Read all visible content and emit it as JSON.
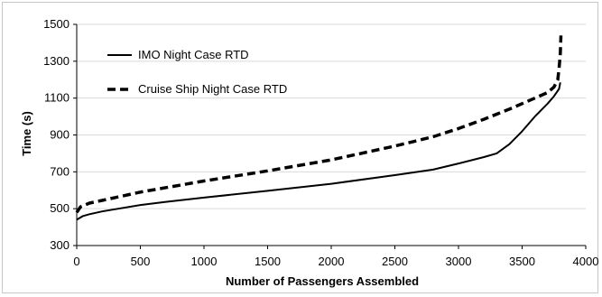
{
  "chart_data": {
    "type": "line",
    "title": "",
    "xlabel": "Number of Passengers Assembled",
    "ylabel": "Time (s)",
    "xlim": [
      0,
      4000
    ],
    "ylim": [
      300,
      1500
    ],
    "x_ticks": [
      0,
      500,
      1000,
      1500,
      2000,
      2500,
      3000,
      3500,
      4000
    ],
    "y_ticks": [
      300,
      500,
      700,
      900,
      1100,
      1300,
      1500
    ],
    "grid": "horizontal",
    "legend_position": "top-left",
    "series": [
      {
        "name": "IMO Night Case RTD",
        "style": "solid",
        "color": "#000000",
        "points": [
          [
            0,
            440
          ],
          [
            50,
            460
          ],
          [
            100,
            470
          ],
          [
            200,
            485
          ],
          [
            300,
            497
          ],
          [
            500,
            520
          ],
          [
            700,
            537
          ],
          [
            1000,
            560
          ],
          [
            1500,
            597
          ],
          [
            2000,
            635
          ],
          [
            2500,
            682
          ],
          [
            2800,
            712
          ],
          [
            3000,
            745
          ],
          [
            3200,
            780
          ],
          [
            3300,
            800
          ],
          [
            3400,
            850
          ],
          [
            3500,
            920
          ],
          [
            3600,
            1000
          ],
          [
            3700,
            1070
          ],
          [
            3750,
            1110
          ],
          [
            3790,
            1150
          ],
          [
            3800,
            1185
          ]
        ]
      },
      {
        "name": "Cruise Ship Night Case RTD",
        "style": "dashed",
        "color": "#000000",
        "points": [
          [
            0,
            480
          ],
          [
            30,
            510
          ],
          [
            100,
            530
          ],
          [
            200,
            545
          ],
          [
            500,
            590
          ],
          [
            1000,
            650
          ],
          [
            1500,
            705
          ],
          [
            2000,
            765
          ],
          [
            2500,
            840
          ],
          [
            2800,
            890
          ],
          [
            3000,
            935
          ],
          [
            3200,
            985
          ],
          [
            3400,
            1040
          ],
          [
            3600,
            1100
          ],
          [
            3700,
            1130
          ],
          [
            3750,
            1160
          ],
          [
            3780,
            1200
          ],
          [
            3790,
            1260
          ],
          [
            3800,
            1340
          ],
          [
            3805,
            1440
          ]
        ]
      }
    ]
  }
}
